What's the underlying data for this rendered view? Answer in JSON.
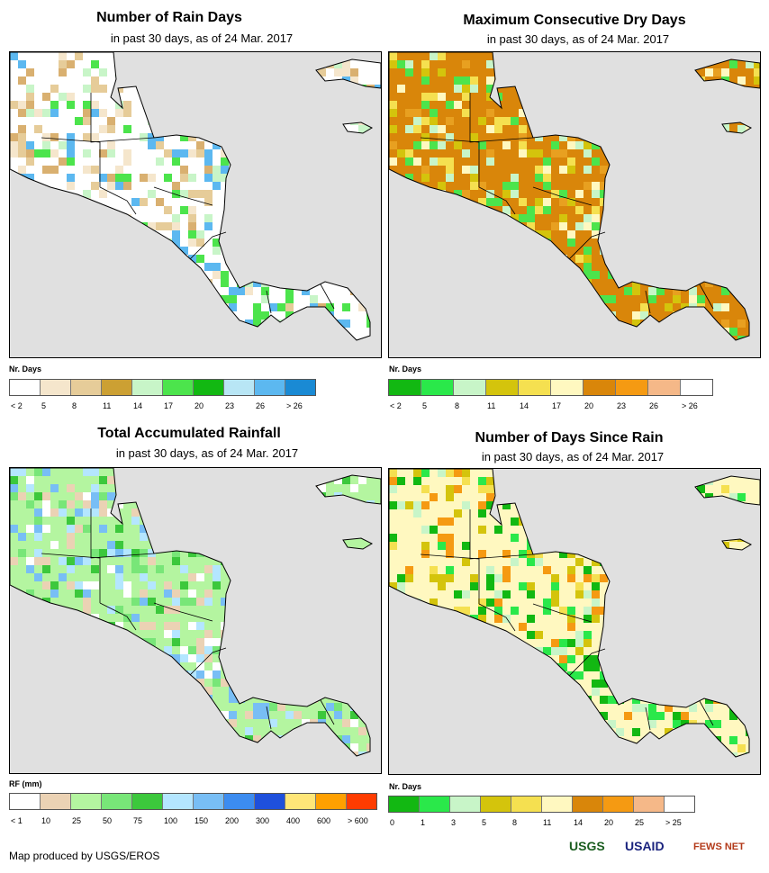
{
  "panels": {
    "rain_days": {
      "title": "Number of Rain Days",
      "subtitle": "in past 30 days, as of 24 Mar. 2017",
      "legend_title": "Nr. Days",
      "legend_colors": [
        "#ffffff",
        "#f5e6cc",
        "#e6cc99",
        "#cca033",
        "#c8f5c8",
        "#4ce44c",
        "#12b812",
        "#b8e6f5",
        "#5cb8f0",
        "#1a8ad4"
      ],
      "legend_labels": [
        "< 2",
        "5",
        "8",
        "11",
        "14",
        "17",
        "20",
        "23",
        "26",
        "> 26"
      ],
      "map_palette": [
        "#ffffff",
        "#f5e6cc",
        "#e6cc99",
        "#d9b070",
        "#c8f5c8",
        "#4ce44c",
        "#5cb8f0"
      ]
    },
    "dry_days": {
      "title": "Maximum Consecutive Dry Days",
      "subtitle": "in past 30 days, as of 24 Mar. 2017",
      "legend_title": "Nr. Days",
      "legend_colors": [
        "#12b812",
        "#2ae84a",
        "#c8f5c8",
        "#d4c40c",
        "#f5e050",
        "#fff8c0",
        "#d9860a",
        "#f59a12",
        "#f5b888",
        "#ffffff"
      ],
      "legend_labels": [
        "< 2",
        "5",
        "8",
        "11",
        "14",
        "17",
        "20",
        "23",
        "26",
        "> 26"
      ],
      "map_palette": [
        "#d9860a",
        "#e8a020",
        "#f5e050",
        "#fff8c0",
        "#c8f5c8",
        "#4ce44c",
        "#d4c40c"
      ]
    },
    "rainfall": {
      "title": "Total Accumulated Rainfall",
      "subtitle": "in past 30 days, as of 24 Mar. 2017",
      "legend_title": "RF (mm)",
      "legend_colors": [
        "#ffffff",
        "#ebd2b4",
        "#b4f5a0",
        "#78e678",
        "#3cc83c",
        "#b4e6ff",
        "#78bef5",
        "#3c8cf0",
        "#1e50dc",
        "#ffe678",
        "#ffa000",
        "#ff3c00"
      ],
      "legend_labels": [
        "< 1",
        "10",
        "25",
        "50",
        "75",
        "100",
        "150",
        "200",
        "300",
        "400",
        "600",
        "> 600"
      ],
      "map_palette": [
        "#b4f5a0",
        "#78e678",
        "#3cc83c",
        "#ffffff",
        "#ebd2b4",
        "#b4e6ff",
        "#78bef5"
      ]
    },
    "since_rain": {
      "title": "Number of Days Since Rain",
      "subtitle": "in past 30 days, as of 24 Mar. 2017",
      "legend_title": "Nr. Days",
      "legend_colors": [
        "#12b812",
        "#2ae84a",
        "#c8f5c8",
        "#d4c40c",
        "#f5e050",
        "#fff8c0",
        "#d9860a",
        "#f59a12",
        "#f5b888",
        "#ffffff"
      ],
      "legend_labels": [
        "0",
        "1",
        "3",
        "5",
        "8",
        "11",
        "14",
        "20",
        "25",
        "> 25"
      ],
      "map_palette": [
        "#fff8c0",
        "#f5e050",
        "#d4c40c",
        "#f59a12",
        "#12b812",
        "#2ae84a",
        "#c8f5c8"
      ]
    }
  },
  "credit": "Map produced by USGS/EROS",
  "logos": {
    "usgs": "USGS",
    "usaid": "USAID",
    "fews": "FEWS NET"
  }
}
